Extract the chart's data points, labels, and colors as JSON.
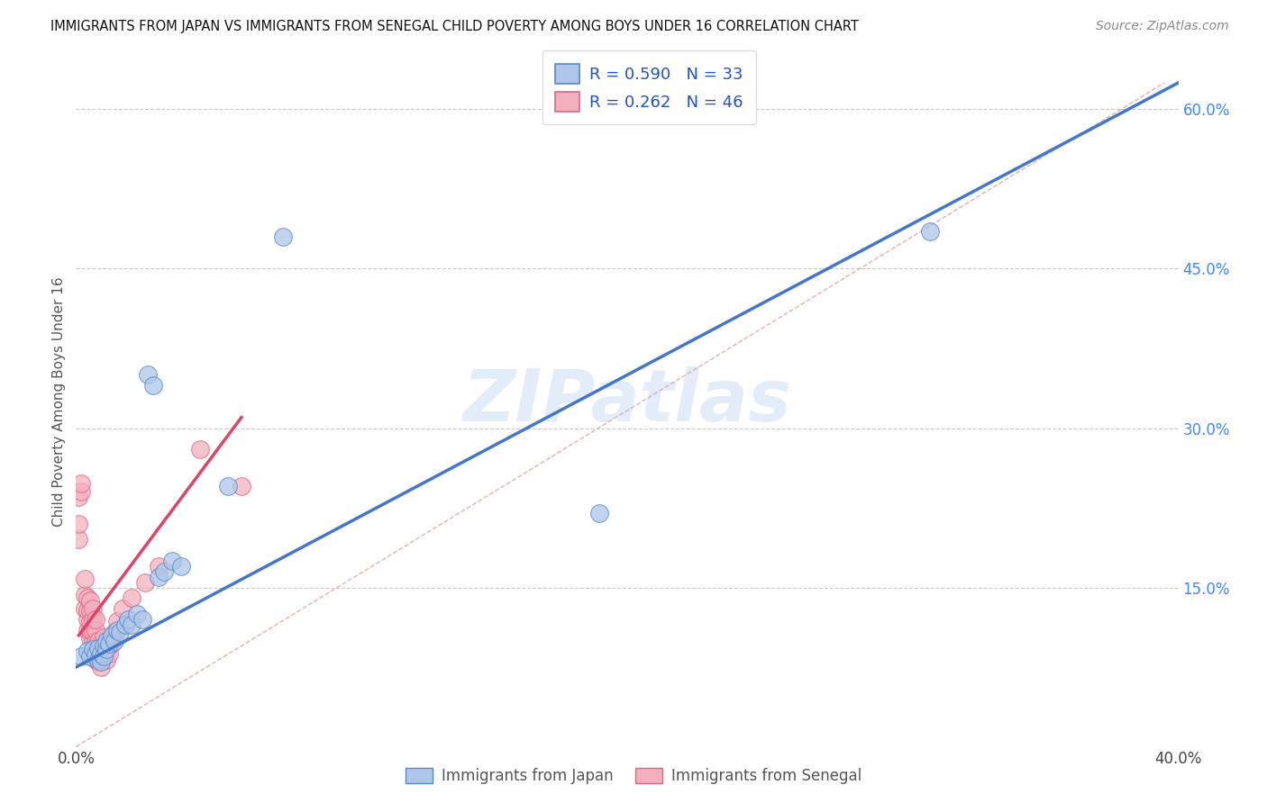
{
  "title": "IMMIGRANTS FROM JAPAN VS IMMIGRANTS FROM SENEGAL CHILD POVERTY AMONG BOYS UNDER 16 CORRELATION CHART",
  "source": "Source: ZipAtlas.com",
  "ylabel": "Child Poverty Among Boys Under 16",
  "xlim": [
    0.0,
    0.4
  ],
  "ylim": [
    0.0,
    0.65
  ],
  "x_ticks": [
    0.0,
    0.05,
    0.1,
    0.15,
    0.2,
    0.25,
    0.3,
    0.35,
    0.4
  ],
  "y_ticks": [
    0.0,
    0.15,
    0.3,
    0.45,
    0.6
  ],
  "background_color": "#ffffff",
  "grid_color": "#c8c8c8",
  "watermark_text": "ZIPatlas",
  "japan_face_color": "#aec6e8",
  "japan_edge_color": "#5588cc",
  "senegal_face_color": "#f4b0bc",
  "senegal_edge_color": "#dd6688",
  "japan_line_color": "#4477cc",
  "senegal_line_color": "#dd4466",
  "dashed_line_color": "#ddaaaa",
  "legend_text_color": "#2255bb",
  "right_axis_color": "#4488ee",
  "japan_R": 0.59,
  "japan_N": 33,
  "senegal_R": 0.262,
  "senegal_N": 46,
  "japan_line_x0": 0.0,
  "japan_line_y0": 0.075,
  "japan_line_x1": 0.4,
  "japan_line_y1": 0.625,
  "senegal_line_x0": 0.001,
  "senegal_line_y0": 0.105,
  "senegal_line_x1": 0.06,
  "senegal_line_y1": 0.31,
  "dashed_line_x0": 0.0,
  "dashed_line_y0": 0.0,
  "dashed_line_x1": 0.395,
  "dashed_line_y1": 0.625,
  "japan_scatter_x": [
    0.002,
    0.004,
    0.005,
    0.006,
    0.007,
    0.008,
    0.008,
    0.009,
    0.009,
    0.01,
    0.01,
    0.011,
    0.011,
    0.012,
    0.013,
    0.014,
    0.015,
    0.016,
    0.018,
    0.019,
    0.02,
    0.022,
    0.024,
    0.026,
    0.028,
    0.03,
    0.032,
    0.035,
    0.038,
    0.055,
    0.075,
    0.19,
    0.31
  ],
  "japan_scatter_y": [
    0.085,
    0.09,
    0.085,
    0.092,
    0.087,
    0.082,
    0.093,
    0.08,
    0.088,
    0.095,
    0.085,
    0.092,
    0.1,
    0.097,
    0.105,
    0.1,
    0.11,
    0.108,
    0.115,
    0.12,
    0.115,
    0.125,
    0.12,
    0.35,
    0.34,
    0.16,
    0.165,
    0.175,
    0.17,
    0.245,
    0.48,
    0.22,
    0.485
  ],
  "senegal_scatter_x": [
    0.001,
    0.001,
    0.001,
    0.002,
    0.002,
    0.003,
    0.003,
    0.003,
    0.004,
    0.004,
    0.004,
    0.004,
    0.005,
    0.005,
    0.005,
    0.005,
    0.005,
    0.006,
    0.006,
    0.006,
    0.006,
    0.006,
    0.007,
    0.007,
    0.007,
    0.007,
    0.007,
    0.008,
    0.008,
    0.008,
    0.009,
    0.009,
    0.01,
    0.01,
    0.011,
    0.011,
    0.012,
    0.013,
    0.014,
    0.015,
    0.017,
    0.02,
    0.025,
    0.03,
    0.045,
    0.06
  ],
  "senegal_scatter_y": [
    0.195,
    0.21,
    0.235,
    0.24,
    0.248,
    0.13,
    0.143,
    0.158,
    0.11,
    0.12,
    0.128,
    0.14,
    0.102,
    0.11,
    0.118,
    0.128,
    0.138,
    0.09,
    0.1,
    0.108,
    0.12,
    0.13,
    0.082,
    0.09,
    0.1,
    0.11,
    0.12,
    0.08,
    0.09,
    0.1,
    0.075,
    0.085,
    0.092,
    0.103,
    0.082,
    0.093,
    0.088,
    0.097,
    0.108,
    0.118,
    0.13,
    0.14,
    0.155,
    0.17,
    0.28,
    0.245
  ],
  "figsize": [
    14.06,
    8.92
  ],
  "dpi": 100
}
